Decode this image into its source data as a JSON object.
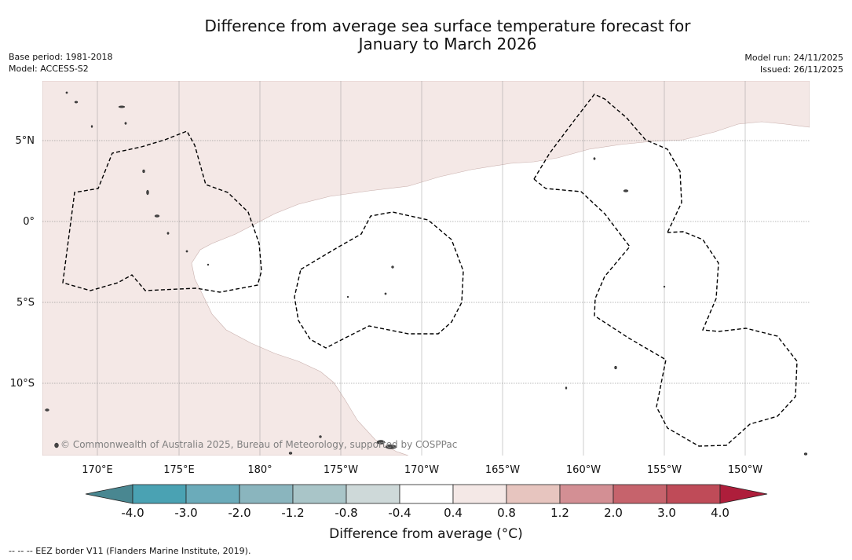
{
  "header": {
    "title_line1": "Difference from average sea surface temperature forecast for",
    "title_line2": "January to March 2026",
    "base_period": "Base period: 1981-2018",
    "model": "Model: ACCESS-S2",
    "model_run": "Model run: 24/11/2025",
    "issued": "Issued: 26/11/2025"
  },
  "map": {
    "copyright": "© Commonwealth of Australia 2025, Bureau of Meteorology, supported by COSPPac",
    "lon_labels": [
      "170°E",
      "175°E",
      "180°",
      "175°W",
      "170°W",
      "165°W",
      "160°W",
      "155°W",
      "150°W"
    ],
    "lat_labels": [
      "5°N",
      "0°",
      "5°S",
      "10°S"
    ],
    "region_colors": {
      "land": "#444444",
      "above_average_0_4_to_0_8": "#f4e8e6",
      "neutral": "#ffffff"
    }
  },
  "colorbar": {
    "label": "Difference from average (°C)",
    "ticks": [
      "-4.0",
      "-3.0",
      "-2.0",
      "-1.2",
      "-0.8",
      "-0.4",
      "0.4",
      "0.8",
      "1.2",
      "2.0",
      "3.0",
      "4.0"
    ],
    "colors": [
      "#498791",
      "#4aa2b3",
      "#6babba",
      "#8ab5be",
      "#a9c5c8",
      "#ced9d9",
      "#ffffff",
      "#f4e8e6",
      "#e7c5bf",
      "#d38f94",
      "#c6636c",
      "#bf4b58",
      "#ae1e3b"
    ]
  },
  "legend": {
    "eez_note": "--  --  -- EEZ border V11 (Flanders Marine Institute, 2019)."
  }
}
